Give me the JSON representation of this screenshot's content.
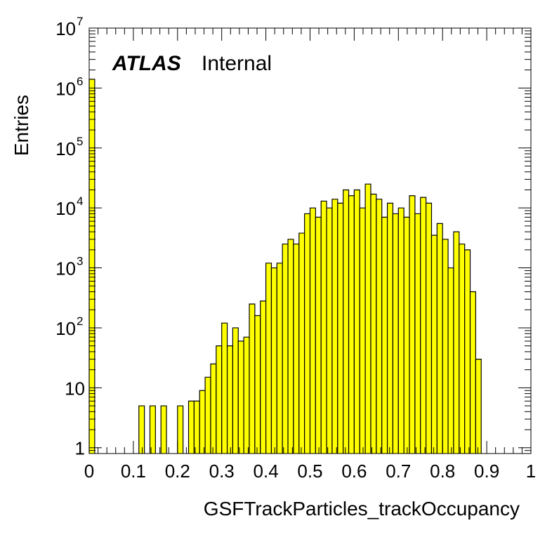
{
  "chart_data": {
    "type": "bar",
    "title": "",
    "xlabel": "GSFTrackParticles_trackOccupancy",
    "ylabel": "Entries",
    "ylog": true,
    "xlim": [
      0,
      1
    ],
    "ylim": [
      0.8,
      10000000
    ],
    "grid": false,
    "legend": "none",
    "annotation": {
      "experiment": "ATLAS",
      "status": "Internal"
    },
    "x_tick_labels": [
      "0",
      "0.1",
      "0.2",
      "0.3",
      "0.4",
      "0.5",
      "0.6",
      "0.7",
      "0.8",
      "0.9",
      "1"
    ],
    "x_ticks": [
      0,
      0.1,
      0.2,
      0.3,
      0.4,
      0.5,
      0.6,
      0.7,
      0.8,
      0.9,
      1
    ],
    "y_tick_labels": [
      {
        "value": 1,
        "base": "1",
        "exp": ""
      },
      {
        "value": 10,
        "base": "10",
        "exp": ""
      },
      {
        "value": 100,
        "base": "10",
        "exp": "2"
      },
      {
        "value": 1000,
        "base": "10",
        "exp": "3"
      },
      {
        "value": 10000,
        "base": "10",
        "exp": "4"
      },
      {
        "value": 100000,
        "base": "10",
        "exp": "5"
      },
      {
        "value": 1000000,
        "base": "10",
        "exp": "6"
      },
      {
        "value": 10000000,
        "base": "10",
        "exp": "7"
      }
    ],
    "bin_width": 0.0125,
    "bin_start": [
      0,
      0.1125,
      0.1375,
      0.1625,
      0.2,
      0.225,
      0.2375,
      0.25,
      0.2625,
      0.275,
      0.2875,
      0.3,
      0.3125,
      0.325,
      0.3375,
      0.35,
      0.3625,
      0.375,
      0.3875,
      0.4,
      0.4125,
      0.425,
      0.4375,
      0.45,
      0.4625,
      0.475,
      0.4875,
      0.5,
      0.5125,
      0.525,
      0.5375,
      0.55,
      0.5625,
      0.575,
      0.5875,
      0.6,
      0.6125,
      0.625,
      0.6375,
      0.65,
      0.6625,
      0.675,
      0.6875,
      0.7,
      0.7125,
      0.725,
      0.7375,
      0.75,
      0.7625,
      0.775,
      0.7875,
      0.8,
      0.8125,
      0.825,
      0.8375,
      0.85,
      0.8625,
      0.875
    ],
    "values": [
      1400000,
      5,
      5,
      5,
      5,
      6,
      6,
      9,
      15,
      25,
      50,
      120,
      50,
      100,
      60,
      70,
      250,
      160,
      280,
      1200,
      1000,
      1200,
      2500,
      3000,
      2500,
      3800,
      8000,
      10000,
      7000,
      13000,
      10000,
      14000,
      12000,
      20000,
      16000,
      20000,
      10000,
      25000,
      17000,
      14000,
      7000,
      12000,
      8000,
      10000,
      7000,
      16000,
      8000,
      15000,
      12000,
      3500,
      5500,
      3000,
      1000,
      4000,
      2500,
      2000,
      400,
      30
    ]
  }
}
